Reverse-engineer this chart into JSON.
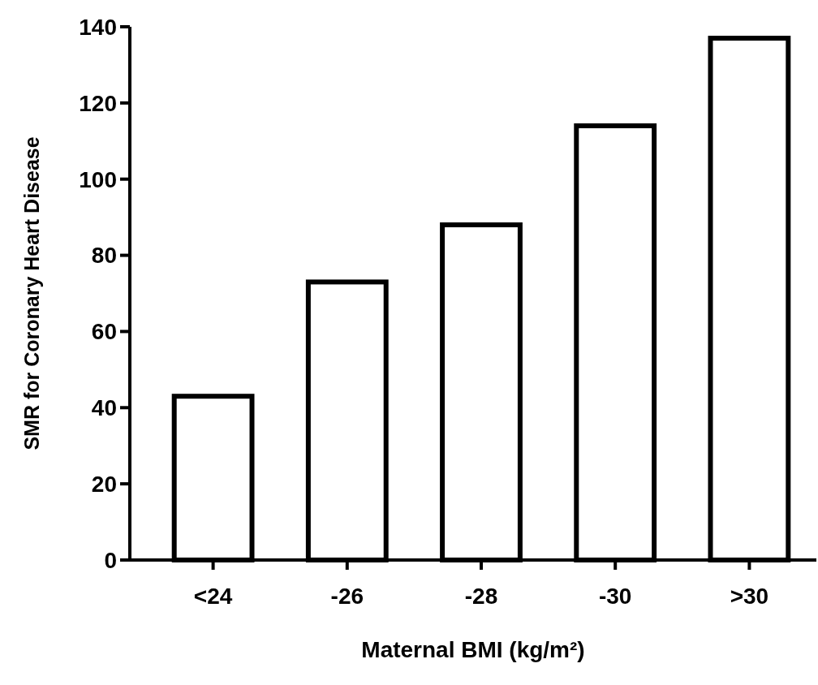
{
  "chart_data": {
    "type": "bar",
    "xlabel": "Maternal BMI (kg/m²)",
    "ylabel": "SMR for Coronary Heart Disease",
    "categories": [
      "<24",
      "-26",
      "-28",
      "-30",
      ">30"
    ],
    "values": [
      43,
      73,
      88,
      114,
      137
    ],
    "color": "#ffffff",
    "ylim": [
      0,
      140
    ],
    "yticks": [
      0,
      20,
      40,
      60,
      80,
      100,
      120,
      140
    ],
    "grid": false
  }
}
